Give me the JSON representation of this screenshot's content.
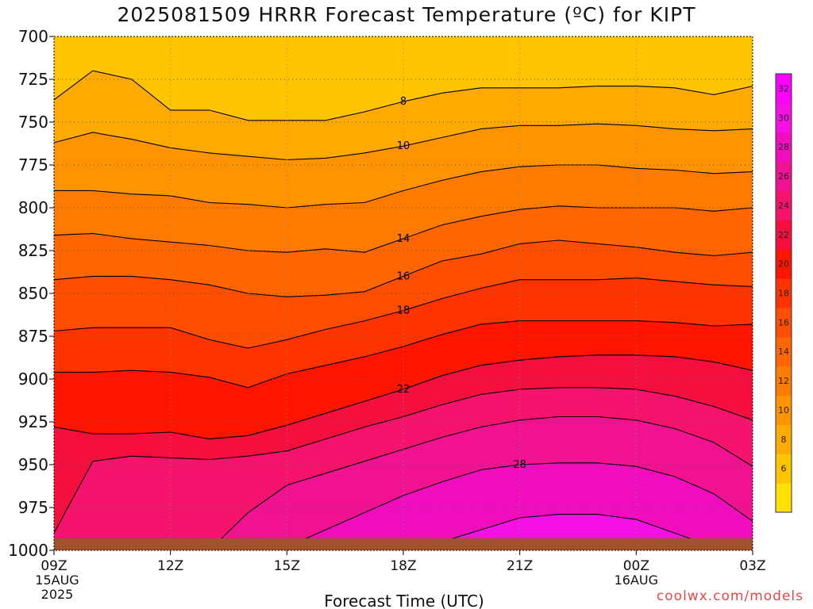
{
  "title": "2025081509 HRRR Forecast Temperature (ºC) for KIPT",
  "credit": "coolwx.com/models",
  "chart_data": {
    "type": "heatmap",
    "title": "2025081509 HRRR Forecast Temperature (ºC) for KIPT",
    "xlabel": "Forecast Time (UTC)",
    "ylabel": "",
    "x": [
      "09Z",
      "12Z",
      "15Z",
      "18Z",
      "21Z",
      "00Z",
      "03Z"
    ],
    "x_hours": [
      0,
      3,
      6,
      9,
      12,
      15,
      18
    ],
    "x_sublabels": [
      {
        "x": "09Z",
        "lines": [
          "15AUG",
          "2025"
        ]
      },
      {
        "x": "00Z",
        "lines": [
          "16AUG"
        ]
      }
    ],
    "y": [
      700,
      725,
      750,
      775,
      800,
      825,
      850,
      875,
      900,
      925,
      950,
      975,
      1000
    ],
    "ylim": [
      1000,
      700
    ],
    "grid": true,
    "colorbar": {
      "ticks": [
        6,
        8,
        10,
        12,
        14,
        16,
        18,
        20,
        22,
        24,
        26,
        28,
        30,
        32
      ],
      "colors": [
        "#ffe000",
        "#ffc400",
        "#ffaa00",
        "#ff9300",
        "#ff7b00",
        "#ff6600",
        "#ff4e00",
        "#ff3300",
        "#ff1400",
        "#f50f3e",
        "#f5136e",
        "#f01290",
        "#f00dbe",
        "#f510e4",
        "#ff00ff"
      ],
      "levels": [
        4,
        6,
        8,
        10,
        12,
        14,
        16,
        18,
        20,
        22,
        24,
        26,
        28,
        30,
        32,
        34
      ]
    },
    "isotherms": [
      {
        "value": 8,
        "label": "8",
        "points": [
          [
            0,
            737
          ],
          [
            1,
            720
          ],
          [
            2,
            725
          ],
          [
            3,
            743
          ],
          [
            4,
            743
          ],
          [
            5,
            749
          ],
          [
            6,
            749
          ],
          [
            7,
            749
          ],
          [
            8,
            744
          ],
          [
            9,
            738
          ],
          [
            10,
            733
          ],
          [
            11,
            730
          ],
          [
            12,
            730
          ],
          [
            13,
            730
          ],
          [
            14,
            729
          ],
          [
            15,
            729
          ],
          [
            16,
            730
          ],
          [
            17,
            734
          ],
          [
            18,
            729
          ]
        ]
      },
      {
        "value": 10,
        "label": "10",
        "points": [
          [
            0,
            762
          ],
          [
            1,
            756
          ],
          [
            2,
            760
          ],
          [
            3,
            765
          ],
          [
            4,
            768
          ],
          [
            5,
            770
          ],
          [
            6,
            772
          ],
          [
            7,
            771
          ],
          [
            8,
            768
          ],
          [
            9,
            764
          ],
          [
            10,
            759
          ],
          [
            11,
            754
          ],
          [
            12,
            752
          ],
          [
            13,
            752
          ],
          [
            14,
            751
          ],
          [
            15,
            752
          ],
          [
            16,
            754
          ],
          [
            17,
            755
          ],
          [
            18,
            754
          ]
        ]
      },
      {
        "value": 12,
        "label": "",
        "points": [
          [
            0,
            790
          ],
          [
            1,
            790
          ],
          [
            2,
            792
          ],
          [
            3,
            793
          ],
          [
            4,
            797
          ],
          [
            5,
            798
          ],
          [
            6,
            800
          ],
          [
            7,
            798
          ],
          [
            8,
            797
          ],
          [
            9,
            790
          ],
          [
            10,
            784
          ],
          [
            11,
            779
          ],
          [
            12,
            776
          ],
          [
            13,
            775
          ],
          [
            14,
            775
          ],
          [
            15,
            777
          ],
          [
            16,
            778
          ],
          [
            17,
            780
          ],
          [
            18,
            779
          ]
        ]
      },
      {
        "value": 14,
        "label": "14",
        "points": [
          [
            0,
            816
          ],
          [
            1,
            815
          ],
          [
            2,
            818
          ],
          [
            3,
            820
          ],
          [
            4,
            822
          ],
          [
            5,
            825
          ],
          [
            6,
            826
          ],
          [
            7,
            824
          ],
          [
            8,
            826
          ],
          [
            9,
            818
          ],
          [
            10,
            810
          ],
          [
            11,
            805
          ],
          [
            12,
            801
          ],
          [
            13,
            799
          ],
          [
            14,
            800
          ],
          [
            15,
            800
          ],
          [
            16,
            800
          ],
          [
            17,
            802
          ],
          [
            18,
            800
          ]
        ]
      },
      {
        "value": 16,
        "label": "16",
        "points": [
          [
            0,
            842
          ],
          [
            1,
            840
          ],
          [
            2,
            840
          ],
          [
            3,
            842
          ],
          [
            4,
            845
          ],
          [
            5,
            850
          ],
          [
            6,
            852
          ],
          [
            7,
            851
          ],
          [
            8,
            849
          ],
          [
            9,
            840
          ],
          [
            10,
            831
          ],
          [
            11,
            827
          ],
          [
            12,
            821
          ],
          [
            13,
            819
          ],
          [
            14,
            821
          ],
          [
            15,
            823
          ],
          [
            16,
            826
          ],
          [
            17,
            828
          ],
          [
            18,
            826
          ]
        ]
      },
      {
        "value": 18,
        "label": "18",
        "points": [
          [
            0,
            872
          ],
          [
            1,
            870
          ],
          [
            2,
            870
          ],
          [
            3,
            870
          ],
          [
            4,
            877
          ],
          [
            5,
            882
          ],
          [
            6,
            877
          ],
          [
            7,
            871
          ],
          [
            8,
            866
          ],
          [
            9,
            860
          ],
          [
            10,
            853
          ],
          [
            11,
            847
          ],
          [
            12,
            842
          ],
          [
            13,
            842
          ],
          [
            14,
            842
          ],
          [
            15,
            841
          ],
          [
            16,
            843
          ],
          [
            17,
            845
          ],
          [
            18,
            846
          ]
        ]
      },
      {
        "value": 20,
        "label": "",
        "points": [
          [
            0,
            896
          ],
          [
            1,
            896
          ],
          [
            2,
            895
          ],
          [
            3,
            896
          ],
          [
            4,
            899
          ],
          [
            5,
            905
          ],
          [
            6,
            897
          ],
          [
            7,
            892
          ],
          [
            8,
            887
          ],
          [
            9,
            881
          ],
          [
            10,
            874
          ],
          [
            11,
            868
          ],
          [
            12,
            866
          ],
          [
            13,
            866
          ],
          [
            14,
            866
          ],
          [
            15,
            866
          ],
          [
            16,
            867
          ],
          [
            17,
            869
          ],
          [
            18,
            868
          ]
        ]
      },
      {
        "value": 22,
        "label": "22",
        "points": [
          [
            0,
            928
          ],
          [
            1,
            932
          ],
          [
            2,
            932
          ],
          [
            3,
            931
          ],
          [
            4,
            935
          ],
          [
            5,
            933
          ],
          [
            6,
            927
          ],
          [
            7,
            920
          ],
          [
            8,
            913
          ],
          [
            9,
            906
          ],
          [
            10,
            898
          ],
          [
            11,
            892
          ],
          [
            12,
            889
          ],
          [
            13,
            887
          ],
          [
            14,
            886
          ],
          [
            15,
            886
          ],
          [
            16,
            887
          ],
          [
            17,
            890
          ],
          [
            18,
            895
          ]
        ]
      },
      {
        "value": 24,
        "label": "",
        "points": [
          [
            0,
            990
          ],
          [
            1,
            948
          ],
          [
            2,
            945
          ],
          [
            3,
            946
          ],
          [
            4,
            947
          ],
          [
            5,
            945
          ],
          [
            6,
            942
          ],
          [
            7,
            935
          ],
          [
            8,
            928
          ],
          [
            9,
            922
          ],
          [
            10,
            915
          ],
          [
            11,
            909
          ],
          [
            12,
            906
          ],
          [
            13,
            905
          ],
          [
            14,
            905
          ],
          [
            15,
            906
          ],
          [
            16,
            910
          ],
          [
            17,
            916
          ],
          [
            18,
            924
          ]
        ]
      },
      {
        "value": 26,
        "label": "",
        "points": [
          [
            4,
            1000
          ],
          [
            5,
            978
          ],
          [
            6,
            962
          ],
          [
            7,
            955
          ],
          [
            8,
            948
          ],
          [
            9,
            941
          ],
          [
            10,
            934
          ],
          [
            11,
            928
          ],
          [
            12,
            924
          ],
          [
            13,
            922
          ],
          [
            14,
            922
          ],
          [
            15,
            924
          ],
          [
            16,
            929
          ],
          [
            17,
            937
          ],
          [
            18,
            951
          ]
        ]
      },
      {
        "value": 28,
        "label": "28",
        "points": [
          [
            6,
            998
          ],
          [
            7,
            988
          ],
          [
            8,
            978
          ],
          [
            9,
            968
          ],
          [
            10,
            960
          ],
          [
            11,
            953
          ],
          [
            12,
            950
          ],
          [
            13,
            949
          ],
          [
            14,
            949
          ],
          [
            15,
            951
          ],
          [
            16,
            957
          ],
          [
            17,
            967
          ],
          [
            18,
            983
          ]
        ]
      },
      {
        "value": 30,
        "label": "",
        "points": [
          [
            9,
            1000
          ],
          [
            10,
            995
          ],
          [
            11,
            988
          ],
          [
            12,
            981
          ],
          [
            13,
            979
          ],
          [
            14,
            979
          ],
          [
            15,
            982
          ],
          [
            16,
            990
          ],
          [
            17,
            998
          ]
        ]
      }
    ],
    "ground_level_hpa": 993
  }
}
